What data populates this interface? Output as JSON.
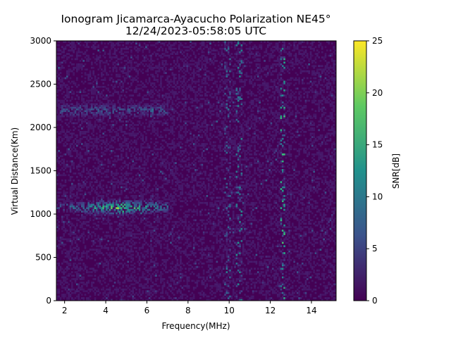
{
  "chart_data": {
    "type": "heatmap",
    "title_line1": "Ionogram Jicamarca-Ayacucho Polarization NE45°",
    "title_line2": "12/24/2023-05:58:05 UTC",
    "xlabel": "Frequency(MHz)",
    "ylabel": "Virtual Distance(Km)",
    "xlim": [
      1.6,
      15.2
    ],
    "ylim": [
      0,
      3000
    ],
    "xticks": [
      2,
      4,
      6,
      8,
      10,
      12,
      14
    ],
    "yticks": [
      0,
      500,
      1000,
      1500,
      2000,
      2500,
      3000
    ],
    "colorbar": {
      "label": "SNR[dB]",
      "colormap": "viridis",
      "range": [
        0,
        25
      ],
      "ticks": [
        0,
        5,
        10,
        15,
        20,
        25
      ]
    },
    "grid": false,
    "background_snr_db": 1,
    "features": [
      {
        "name": "F-layer echo trace",
        "x_range": [
          1.6,
          7.0
        ],
        "center_y": 1080,
        "peak_x": 4.7,
        "peak_snr_db": 24
      },
      {
        "name": "second-hop echo trace",
        "x_range": [
          1.8,
          7.0
        ],
        "center_y": 2200,
        "peak_snr_db": 13
      },
      {
        "name": "interference band",
        "x": 9.9,
        "snr_db": 8
      },
      {
        "name": "interference band",
        "x": 10.5,
        "snr_db": 11
      },
      {
        "name": "interference band",
        "x": 12.6,
        "snr_db": 16
      }
    ]
  }
}
